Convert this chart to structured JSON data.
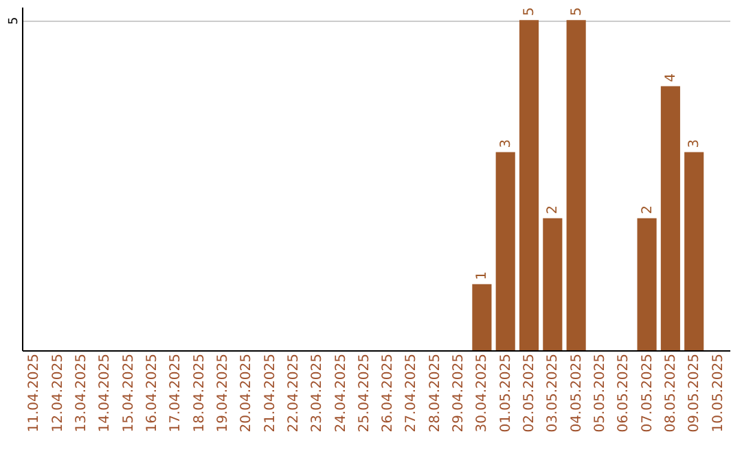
{
  "chart_data": {
    "type": "bar",
    "categories": [
      "11.04.2025",
      "12.04.2025",
      "13.04.2025",
      "14.04.2025",
      "15.04.2025",
      "16.04.2025",
      "17.04.2025",
      "18.04.2025",
      "19.04.2025",
      "20.04.2025",
      "21.04.2025",
      "22.04.2025",
      "23.04.2025",
      "24.04.2025",
      "25.04.2025",
      "26.04.2025",
      "27.04.2025",
      "28.04.2025",
      "29.04.2025",
      "30.04.2025",
      "01.05.2025",
      "02.05.2025",
      "03.05.2025",
      "04.05.2025",
      "05.05.2025",
      "06.05.2025",
      "07.05.2025",
      "08.05.2025",
      "09.05.2025",
      "10.05.2025"
    ],
    "values": [
      null,
      null,
      null,
      null,
      null,
      null,
      null,
      null,
      null,
      null,
      null,
      null,
      null,
      null,
      null,
      null,
      null,
      null,
      null,
      1,
      3,
      5,
      2,
      5,
      null,
      null,
      2,
      4,
      3,
      null
    ],
    "color": "#a0592a",
    "ylim": [
      0,
      5.2
    ],
    "yticks": [
      5
    ],
    "grid": "y",
    "data_labels": true
  }
}
